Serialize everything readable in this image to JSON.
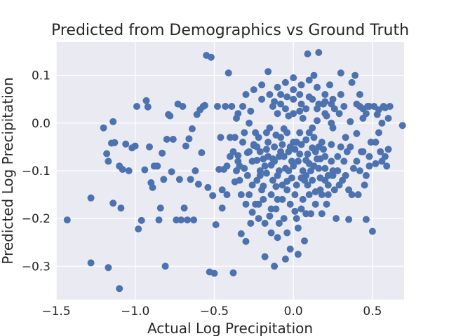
{
  "chart_data": {
    "type": "scatter",
    "title": "Predicted from Demographics vs Ground Truth",
    "xlabel": "Actual Log Precipitation",
    "ylabel": "Predicted Log Precipitation",
    "xlim": [
      -1.5,
      0.7
    ],
    "ylim": [
      -0.37,
      0.17
    ],
    "xticks": [
      -1.5,
      -1.0,
      -0.5,
      0.0,
      0.5
    ],
    "xtick_labels": [
      "−1.5",
      "−1.0",
      "−0.5",
      "0.0",
      "0.5"
    ],
    "yticks": [
      -0.3,
      -0.2,
      -0.1,
      0.0,
      0.1
    ],
    "ytick_labels": [
      "−0.3",
      "−0.2",
      "−0.1",
      "0.0",
      "0.1"
    ],
    "grid": true,
    "background": "#eaeaf2",
    "marker_color": "#4c72b0",
    "points": [
      [
        -1.43,
        -0.203
      ],
      [
        -1.28,
        -0.293
      ],
      [
        -1.28,
        -0.157
      ],
      [
        -1.17,
        -0.303
      ],
      [
        -1.1,
        -0.347
      ],
      [
        -1.09,
        -0.178
      ],
      [
        -1.14,
        -0.168
      ],
      [
        -1.2,
        -0.01
      ],
      [
        -1.18,
        -0.064
      ],
      [
        -1.17,
        -0.08
      ],
      [
        -1.15,
        -0.042
      ],
      [
        -1.14,
        0.003
      ],
      [
        -1.13,
        -0.041
      ],
      [
        -1.1,
        -0.09
      ],
      [
        -1.08,
        -0.097
      ],
      [
        -1.06,
        -0.044
      ],
      [
        -1.04,
        -0.1
      ],
      [
        -1.02,
        -0.052
      ],
      [
        -1.0,
        -0.048
      ],
      [
        -0.99,
        0.035
      ],
      [
        -0.98,
        -0.222
      ],
      [
        -0.96,
        -0.204
      ],
      [
        -0.94,
        -0.098
      ],
      [
        -0.93,
        0.047
      ],
      [
        -0.92,
        0.034
      ],
      [
        -0.91,
        -0.05
      ],
      [
        -0.9,
        -0.125
      ],
      [
        -0.89,
        -0.135
      ],
      [
        -0.88,
        -0.09
      ],
      [
        -0.86,
        -0.09
      ],
      [
        -0.85,
        -0.203
      ],
      [
        -0.84,
        -0.178
      ],
      [
        -0.83,
        -0.063
      ],
      [
        -0.82,
        -0.118
      ],
      [
        -0.81,
        -0.3
      ],
      [
        -0.8,
        -0.034
      ],
      [
        -0.79,
        0.018
      ],
      [
        -0.78,
        0.015
      ],
      [
        -0.77,
        -0.102
      ],
      [
        -0.76,
        -0.034
      ],
      [
        -0.74,
        -0.203
      ],
      [
        -0.73,
        0.04
      ],
      [
        -0.72,
        -0.118
      ],
      [
        -0.71,
        -0.203
      ],
      [
        -0.7,
        0.035
      ],
      [
        -0.69,
        -0.178
      ],
      [
        -0.68,
        -0.048
      ],
      [
        -0.67,
        -0.203
      ],
      [
        -0.66,
        -0.033
      ],
      [
        -0.65,
        -0.118
      ],
      [
        -0.64,
        -0.012
      ],
      [
        -0.63,
        -0.203
      ],
      [
        -0.62,
        -0.1
      ],
      [
        -0.61,
        0.018
      ],
      [
        -0.6,
        -0.128
      ],
      [
        -0.59,
        0.028
      ],
      [
        -0.58,
        -0.062
      ],
      [
        -0.57,
        0.035
      ],
      [
        -0.56,
        0.037
      ],
      [
        -0.55,
        0.142
      ],
      [
        -0.54,
        -0.135
      ],
      [
        -0.53,
        -0.312
      ],
      [
        -0.52,
        0.138
      ],
      [
        -0.51,
        -0.152
      ],
      [
        -0.5,
        -0.315
      ],
      [
        -0.49,
        -0.213
      ],
      [
        -0.48,
        0.035
      ],
      [
        -0.47,
        -0.097
      ],
      [
        -0.46,
        -0.03
      ],
      [
        -0.45,
        -0.178
      ],
      [
        -0.44,
        -0.097
      ],
      [
        -0.43,
        0.035
      ],
      [
        -0.42,
        -0.09
      ],
      [
        -0.41,
        0.105
      ],
      [
        -0.4,
        -0.03
      ],
      [
        -0.39,
        0.035
      ],
      [
        -0.38,
        -0.314
      ],
      [
        -0.37,
        -0.123
      ],
      [
        -0.36,
        0.01
      ],
      [
        -0.35,
        -0.068
      ],
      [
        -0.34,
        -0.12
      ],
      [
        -0.33,
        -0.232
      ],
      [
        -0.32,
        0.035
      ],
      [
        -0.31,
        -0.095
      ],
      [
        -0.3,
        -0.248
      ],
      [
        -0.29,
        -0.062
      ],
      [
        -0.28,
        -0.15
      ],
      [
        -0.27,
        0.025
      ],
      [
        -0.26,
        -0.187
      ],
      [
        -0.25,
        -0.047
      ],
      [
        -0.24,
        -0.17
      ],
      [
        -0.23,
        -0.078
      ],
      [
        -0.22,
        -0.2
      ],
      [
        -0.21,
        -0.11
      ],
      [
        -0.2,
        0.05
      ],
      [
        -0.19,
        -0.132
      ],
      [
        -0.18,
        -0.28
      ],
      [
        -0.17,
        -0.055
      ],
      [
        -0.16,
        0.108
      ],
      [
        -0.15,
        -0.195
      ],
      [
        -0.14,
        -0.088
      ],
      [
        -0.13,
        0.035
      ],
      [
        -0.12,
        -0.3
      ],
      [
        -0.11,
        -0.133
      ],
      [
        -0.1,
        -0.24
      ],
      [
        -0.09,
        -0.07
      ],
      [
        -0.08,
        0.06
      ],
      [
        -0.07,
        -0.16
      ],
      [
        -0.06,
        -0.012
      ],
      [
        -0.05,
        -0.285
      ],
      [
        -0.04,
        -0.122
      ],
      [
        -0.03,
        0.015
      ],
      [
        -0.02,
        -0.264
      ],
      [
        -0.01,
        -0.08
      ],
      [
        0.0,
        0.095
      ],
      [
        0.01,
        -0.185
      ],
      [
        0.02,
        -0.04
      ],
      [
        0.03,
        -0.275
      ],
      [
        0.04,
        0.06
      ],
      [
        0.05,
        -0.115
      ],
      [
        0.06,
        0.01
      ],
      [
        0.07,
        -0.247
      ],
      [
        0.08,
        -0.078
      ],
      [
        0.09,
        0.145
      ],
      [
        0.1,
        -0.02
      ],
      [
        0.11,
        -0.19
      ],
      [
        0.12,
        -0.052
      ],
      [
        0.13,
        0.1
      ],
      [
        0.14,
        -0.144
      ],
      [
        0.15,
        0.005
      ],
      [
        0.16,
        0.148
      ],
      [
        0.17,
        -0.075
      ],
      [
        0.18,
        -0.19
      ],
      [
        0.19,
        0.04
      ],
      [
        0.2,
        -0.095
      ],
      [
        0.21,
        0.015
      ],
      [
        0.22,
        -0.15
      ],
      [
        0.23,
        0.08
      ],
      [
        0.24,
        -0.045
      ],
      [
        0.25,
        -0.11
      ],
      [
        0.26,
        0.03
      ],
      [
        0.27,
        -0.2
      ],
      [
        0.28,
        -0.07
      ],
      [
        0.29,
        0.02
      ],
      [
        0.3,
        0.105
      ],
      [
        0.31,
        -0.12
      ],
      [
        0.32,
        0.035
      ],
      [
        0.33,
        -0.03
      ],
      [
        0.34,
        -0.06
      ],
      [
        0.35,
        -0.202
      ],
      [
        0.36,
        0.003
      ],
      [
        0.37,
        0.085
      ],
      [
        0.38,
        -0.095
      ],
      [
        0.39,
        0.1
      ],
      [
        0.4,
        -0.022
      ],
      [
        0.41,
        -0.15
      ],
      [
        0.42,
        0.035
      ],
      [
        0.43,
        -0.06
      ],
      [
        0.44,
        0.01
      ],
      [
        0.45,
        -0.13
      ],
      [
        0.46,
        -0.202
      ],
      [
        0.47,
        0.035
      ],
      [
        0.48,
        -0.09
      ],
      [
        0.49,
        -0.04
      ],
      [
        0.5,
        -0.227
      ],
      [
        0.51,
        0.035
      ],
      [
        0.52,
        -0.085
      ],
      [
        0.53,
        0.018
      ],
      [
        0.54,
        0.028
      ],
      [
        0.55,
        -0.06
      ],
      [
        0.56,
        -0.08
      ],
      [
        0.57,
        0.035
      ],
      [
        0.58,
        0.032
      ],
      [
        0.59,
        -0.09
      ],
      [
        0.6,
        -0.055
      ],
      [
        0.61,
        0.035
      ],
      [
        0.69,
        -0.005
      ],
      [
        -0.25,
        -0.045
      ],
      [
        -0.23,
        -0.12
      ],
      [
        -0.21,
        -0.06
      ],
      [
        -0.18,
        -0.09
      ],
      [
        -0.16,
        -0.04
      ],
      [
        -0.14,
        -0.15
      ],
      [
        -0.12,
        -0.05
      ],
      [
        -0.1,
        -0.11
      ],
      [
        -0.08,
        -0.03
      ],
      [
        -0.06,
        -0.07
      ],
      [
        -0.04,
        -0.14
      ],
      [
        -0.02,
        -0.05
      ],
      [
        0.0,
        -0.09
      ],
      [
        0.02,
        -0.13
      ],
      [
        0.04,
        -0.065
      ],
      [
        0.06,
        -0.1
      ],
      [
        0.08,
        -0.035
      ],
      [
        0.1,
        -0.085
      ],
      [
        0.12,
        -0.12
      ],
      [
        0.14,
        -0.06
      ],
      [
        0.16,
        -0.095
      ],
      [
        0.18,
        -0.04
      ],
      [
        0.2,
        -0.07
      ],
      [
        0.22,
        -0.11
      ],
      [
        0.24,
        -0.08
      ],
      [
        -0.22,
        -0.03
      ],
      [
        -0.19,
        -0.075
      ],
      [
        -0.17,
        -0.105
      ],
      [
        -0.13,
        -0.075
      ],
      [
        -0.11,
        -0.025
      ],
      [
        -0.09,
        -0.1
      ],
      [
        -0.07,
        -0.045
      ],
      [
        -0.05,
        -0.095
      ],
      [
        -0.03,
        -0.06
      ],
      [
        -0.01,
        -0.115
      ],
      [
        0.01,
        -0.055
      ],
      [
        0.03,
        -0.08
      ],
      [
        0.05,
        -0.045
      ],
      [
        0.07,
        -0.12
      ],
      [
        0.09,
        -0.065
      ],
      [
        0.11,
        -0.1
      ],
      [
        0.13,
        -0.03
      ],
      [
        0.15,
        -0.075
      ],
      [
        0.17,
        -0.115
      ],
      [
        0.19,
        -0.055
      ],
      [
        -0.28,
        0.0
      ],
      [
        -0.26,
        -0.08
      ],
      [
        -0.24,
        -0.02
      ],
      [
        -0.2,
        -0.14
      ],
      [
        -0.15,
        -0.01
      ],
      [
        -0.1,
        0.02
      ],
      [
        -0.05,
        0.03
      ],
      [
        0.0,
        0.05
      ],
      [
        0.05,
        0.04
      ],
      [
        0.1,
        0.055
      ],
      [
        0.15,
        0.03
      ],
      [
        0.2,
        0.02
      ],
      [
        0.25,
        -0.01
      ],
      [
        0.3,
        -0.05
      ],
      [
        0.35,
        -0.14
      ],
      [
        -0.3,
        -0.17
      ],
      [
        -0.27,
        -0.21
      ],
      [
        -0.22,
        -0.17
      ],
      [
        -0.18,
        -0.21
      ],
      [
        -0.14,
        -0.18
      ],
      [
        -0.1,
        -0.16
      ],
      [
        -0.06,
        -0.2
      ],
      [
        -0.02,
        -0.17
      ],
      [
        0.02,
        -0.2
      ],
      [
        0.06,
        -0.16
      ],
      [
        0.1,
        -0.15
      ],
      [
        0.14,
        -0.17
      ],
      [
        0.18,
        -0.15
      ],
      [
        0.22,
        -0.13
      ],
      [
        0.26,
        -0.14
      ],
      [
        -0.35,
        0.02
      ],
      [
        -0.32,
        -0.04
      ],
      [
        -0.3,
        0.06
      ],
      [
        -0.25,
        0.07
      ],
      [
        -0.2,
        0.08
      ],
      [
        -0.15,
        0.06
      ],
      [
        -0.1,
        0.075
      ],
      [
        -0.05,
        0.085
      ],
      [
        0.0,
        0.07
      ],
      [
        0.05,
        0.08
      ],
      [
        0.1,
        0.09
      ],
      [
        0.15,
        0.075
      ],
      [
        0.2,
        0.06
      ],
      [
        0.25,
        0.05
      ],
      [
        0.3,
        0.06
      ],
      [
        -0.21,
        -0.1
      ],
      [
        -0.17,
        -0.02
      ],
      [
        -0.12,
        -0.08
      ],
      [
        -0.08,
        -0.06
      ],
      [
        -0.04,
        -0.02
      ],
      [
        0.0,
        -0.04
      ],
      [
        0.04,
        -0.02
      ],
      [
        0.08,
        -0.11
      ],
      [
        0.12,
        -0.01
      ],
      [
        0.16,
        -0.05
      ],
      [
        0.2,
        -0.12
      ],
      [
        0.24,
        0.0
      ],
      [
        0.28,
        -0.1
      ],
      [
        0.32,
        -0.08
      ],
      [
        0.36,
        -0.05
      ],
      [
        -0.33,
        -0.15
      ],
      [
        -0.29,
        -0.11
      ],
      [
        -0.26,
        -0.13
      ],
      [
        -0.23,
        -0.05
      ],
      [
        -0.19,
        -0.16
      ],
      [
        -0.16,
        -0.07
      ],
      [
        -0.13,
        -0.12
      ],
      [
        -0.11,
        -0.18
      ],
      [
        -0.07,
        -0.13
      ],
      [
        -0.03,
        -0.1
      ],
      [
        0.01,
        -0.15
      ],
      [
        0.05,
        -0.18
      ],
      [
        0.09,
        -0.13
      ],
      [
        0.13,
        -0.09
      ],
      [
        0.17,
        -0.14
      ],
      [
        0.21,
        -0.17
      ],
      [
        0.25,
        -0.1
      ],
      [
        0.29,
        -0.13
      ],
      [
        0.33,
        -0.11
      ],
      [
        0.37,
        -0.15
      ],
      [
        -0.38,
        -0.06
      ],
      [
        -0.36,
        -0.1
      ],
      [
        -0.34,
        -0.09
      ],
      [
        -0.31,
        -0.02
      ],
      [
        -0.28,
        -0.06
      ],
      [
        0.4,
        -0.08
      ],
      [
        0.42,
        -0.1
      ],
      [
        0.44,
        -0.06
      ],
      [
        0.46,
        -0.11
      ],
      [
        0.48,
        -0.07
      ],
      [
        0.4,
        0.04
      ],
      [
        0.42,
        0.06
      ],
      [
        0.44,
        0.03
      ],
      [
        0.46,
        0.02
      ],
      [
        0.48,
        0.035
      ],
      [
        -0.12,
        0.045
      ],
      [
        -0.08,
        0.04
      ],
      [
        -0.04,
        0.055
      ],
      [
        0.0,
        0.02
      ],
      [
        0.04,
        0.025
      ],
      [
        0.08,
        0.03
      ],
      [
        0.12,
        0.05
      ],
      [
        0.16,
        0.04
      ],
      [
        0.2,
        0.045
      ],
      [
        0.24,
        0.04
      ],
      [
        -0.14,
        -0.23
      ],
      [
        -0.09,
        -0.21
      ],
      [
        -0.04,
        -0.23
      ],
      [
        0.03,
        -0.22
      ],
      [
        0.08,
        -0.19
      ],
      [
        -0.45,
        -0.14
      ],
      [
        -0.42,
        -0.15
      ],
      [
        -0.4,
        -0.07
      ],
      [
        -0.37,
        -0.03
      ],
      [
        -0.35,
        -0.08
      ],
      [
        0.52,
        -0.04
      ],
      [
        0.54,
        -0.02
      ],
      [
        0.56,
        0.0
      ],
      [
        0.58,
        -0.07
      ],
      [
        0.6,
        0.01
      ]
    ]
  }
}
